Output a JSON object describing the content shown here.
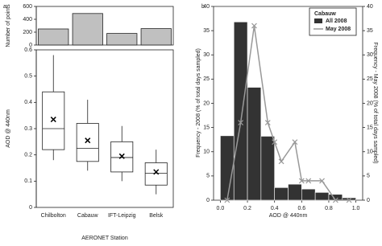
{
  "chart_data": [
    {
      "type": "bar",
      "panel_label": "a.",
      "y_label": "Number of points",
      "values": [
        250,
        490,
        180,
        255
      ],
      "color": "#c0c0c0",
      "ylim": [
        0,
        600
      ],
      "yticks": [
        0,
        200,
        400,
        600
      ]
    },
    {
      "type": "box",
      "y_label": "AOD @ 440nm",
      "x_label": "AERONET Station",
      "categories": [
        "Chilbolton",
        "Cabauw",
        "IFT-Leipzig",
        "Belsk"
      ],
      "whisker_low": [
        0.18,
        0.14,
        0.1,
        0.05
      ],
      "q1": [
        0.22,
        0.175,
        0.135,
        0.085
      ],
      "median": [
        0.3,
        0.225,
        0.19,
        0.13
      ],
      "q3": [
        0.44,
        0.32,
        0.25,
        0.17
      ],
      "whisker_high": [
        0.58,
        0.41,
        0.31,
        0.22
      ],
      "mean": [
        0.335,
        0.255,
        0.195,
        0.135
      ],
      "ylim": [
        0,
        0.6
      ],
      "yticks": [
        0,
        0.1,
        0.2,
        0.3,
        0.4,
        0.5,
        0.6
      ]
    },
    {
      "type": "histogram",
      "panel_label": "b.",
      "x_label": "AOD @ 440nm",
      "y_label": "Frequency - 2008 (% of total days sampled)",
      "y2_label": "Frequency - May 2008 (% of total days sampled)",
      "legend_title": "Cabauw",
      "bins": [
        0,
        0.1,
        0.2,
        0.3,
        0.4,
        0.5,
        0.6,
        0.7,
        0.8,
        0.9,
        1.0
      ],
      "xlim": [
        -0.05,
        1.05
      ],
      "xticks": [
        {
          "value": 0,
          "label": "0.0"
        },
        0.2,
        0.4,
        0.6,
        0.8,
        {
          "value": 1,
          "label": "1.0"
        }
      ],
      "ylim": [
        0,
        40
      ],
      "yticks": [
        0,
        5,
        10,
        15,
        20,
        25,
        30,
        35,
        40
      ],
      "y2lim": [
        0,
        40
      ],
      "y2ticks": [
        0,
        5,
        10,
        15,
        20,
        25,
        30,
        35,
        40
      ],
      "series": [
        {
          "name": "All 2008",
          "color": "#333333",
          "values": [
            13.3,
            36.8,
            23.3,
            13.2,
            2.6,
            3.3,
            2.3,
            1.6,
            1.2,
            0.5
          ]
        },
        {
          "name": "May 2008",
          "color": "#999999",
          "axis": "y2",
          "x": [
            0.05,
            0.15,
            0.25,
            0.35,
            0.4,
            0.45,
            0.55,
            0.6,
            0.65,
            0.75,
            0.85,
            0.95
          ],
          "values": [
            0,
            16,
            36,
            16,
            12,
            8,
            12,
            4,
            4,
            4,
            0,
            0
          ]
        }
      ]
    }
  ]
}
